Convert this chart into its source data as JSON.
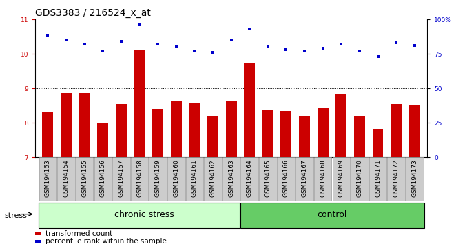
{
  "title": "GDS3383 / 216524_x_at",
  "categories": [
    "GSM194153",
    "GSM194154",
    "GSM194155",
    "GSM194156",
    "GSM194157",
    "GSM194158",
    "GSM194159",
    "GSM194160",
    "GSM194161",
    "GSM194162",
    "GSM194163",
    "GSM194164",
    "GSM194165",
    "GSM194166",
    "GSM194167",
    "GSM194168",
    "GSM194169",
    "GSM194170",
    "GSM194171",
    "GSM194172",
    "GSM194173"
  ],
  "bar_values": [
    8.33,
    8.87,
    8.87,
    8.0,
    8.55,
    10.1,
    8.4,
    8.65,
    8.57,
    8.18,
    8.65,
    9.75,
    8.38,
    8.35,
    8.2,
    8.42,
    8.83,
    8.18,
    7.82,
    8.55,
    8.52
  ],
  "dot_values": [
    88,
    85,
    82,
    77,
    84,
    96,
    82,
    80,
    77,
    76,
    85,
    93,
    80,
    78,
    77,
    79,
    82,
    77,
    73,
    83,
    81
  ],
  "bar_color": "#cc0000",
  "dot_color": "#0000cc",
  "ylim_left": [
    7,
    11
  ],
  "ylim_right": [
    0,
    100
  ],
  "yticks_left": [
    7,
    8,
    9,
    10,
    11
  ],
  "yticks_right": [
    0,
    25,
    50,
    75,
    100
  ],
  "ytick_labels_right": [
    "0",
    "25",
    "50",
    "75",
    "100%"
  ],
  "grid_lines": [
    8,
    9,
    10
  ],
  "chronic_stress_count": 11,
  "control_count": 10,
  "chronic_stress_color": "#ccffcc",
  "control_color": "#66cc66",
  "stress_label": "stress",
  "chronic_label": "chronic stress",
  "control_label": "control",
  "legend_bar_label": "transformed count",
  "legend_dot_label": "percentile rank within the sample",
  "title_fontsize": 10,
  "tick_fontsize": 6.5,
  "label_fontsize": 8,
  "group_fontsize": 9
}
